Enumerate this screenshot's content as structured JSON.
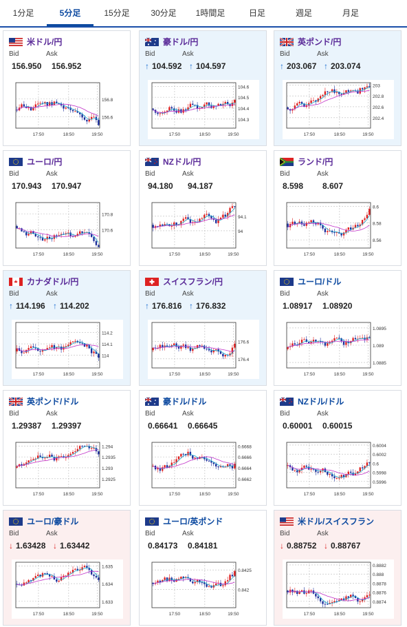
{
  "tabs": [
    {
      "label": "1分足"
    },
    {
      "label": "5分足"
    },
    {
      "label": "15分足"
    },
    {
      "label": "30分足"
    },
    {
      "label": "1時間足"
    },
    {
      "label": "日足"
    },
    {
      "label": "週足"
    },
    {
      "label": "月足"
    }
  ],
  "active_tab": 1,
  "bid_label": "Bid",
  "ask_label": "Ask",
  "x_ticks": [
    "17:50",
    "18:50",
    "19:50"
  ],
  "cards": [
    {
      "name": "米ドル/円",
      "flag": "us",
      "bid": "156.950",
      "ask": "156.952",
      "state": "none",
      "arrow": "",
      "yticks": [
        "156.8",
        "156.6"
      ],
      "ytickpos": [
        0.36,
        0.75
      ]
    },
    {
      "name": "豪ドル/円",
      "flag": "au",
      "bid": "104.592",
      "ask": "104.597",
      "state": "up",
      "arrow": "↑",
      "yticks": [
        "104.6",
        "104.5",
        "104.4",
        "104.3"
      ],
      "ytickpos": [
        0.08,
        0.32,
        0.56,
        0.8
      ]
    },
    {
      "name": "英ポンド/円",
      "flag": "gb",
      "bid": "203.067",
      "ask": "203.074",
      "state": "up",
      "arrow": "↑",
      "yticks": [
        "203",
        "202.8",
        "202.6",
        "202.4"
      ],
      "ytickpos": [
        0.05,
        0.29,
        0.53,
        0.77
      ]
    },
    {
      "name": "ユーロ/円",
      "flag": "eu",
      "bid": "170.943",
      "ask": "170.947",
      "state": "none",
      "arrow": "",
      "yticks": [
        "170.8",
        "170.6"
      ],
      "ytickpos": [
        0.25,
        0.6
      ]
    },
    {
      "name": "NZドル/円",
      "flag": "nz",
      "bid": "94.180",
      "ask": "94.187",
      "state": "none",
      "arrow": "",
      "yticks": [
        "94.1",
        "94"
      ],
      "ytickpos": [
        0.3,
        0.62
      ]
    },
    {
      "name": "ランド/円",
      "flag": "za",
      "bid": "8.598",
      "ask": "8.607",
      "state": "none",
      "arrow": "",
      "yticks": [
        "8.6",
        "8.58",
        "8.56"
      ],
      "ytickpos": [
        0.08,
        0.45,
        0.82
      ]
    },
    {
      "name": "カナダドル/円",
      "flag": "ca",
      "bid": "114.196",
      "ask": "114.202",
      "state": "up",
      "arrow": "↑",
      "yticks": [
        "114.2",
        "114.1",
        "114"
      ],
      "ytickpos": [
        0.22,
        0.47,
        0.72
      ]
    },
    {
      "name": "スイスフラン/円",
      "flag": "ch",
      "bid": "176.816",
      "ask": "176.832",
      "state": "up",
      "arrow": "↑",
      "yticks": [
        "176.6",
        "176.4"
      ],
      "ytickpos": [
        0.42,
        0.8
      ]
    },
    {
      "name": "ユーロ/ドル",
      "flag": "eu",
      "bid": "1.08917",
      "ask": "1.08920",
      "state": "none",
      "arrow": "",
      "yticks": [
        "1.0895",
        "1.089",
        "1.0885"
      ],
      "ytickpos": [
        0.12,
        0.5,
        0.88
      ]
    },
    {
      "name": "英ポンド/ドル",
      "flag": "gb",
      "bid": "1.29387",
      "ask": "1.29397",
      "state": "none",
      "arrow": "",
      "yticks": [
        "1.294",
        "1.2935",
        "1.293",
        "1.2925"
      ],
      "ytickpos": [
        0.08,
        0.32,
        0.56,
        0.8
      ]
    },
    {
      "name": "豪ドル/ドル",
      "flag": "au",
      "bid": "0.66641",
      "ask": "0.66645",
      "state": "none",
      "arrow": "",
      "yticks": [
        "0.6668",
        "0.6666",
        "0.6664",
        "0.6662"
      ],
      "ytickpos": [
        0.08,
        0.32,
        0.56,
        0.8
      ]
    },
    {
      "name": "NZドル/ドル",
      "flag": "nz",
      "bid": "0.60001",
      "ask": "0.60015",
      "state": "none",
      "arrow": "",
      "yticks": [
        "0.6004",
        "0.6002",
        "0.6",
        "0.5998",
        "0.5996"
      ],
      "ytickpos": [
        0.06,
        0.26,
        0.46,
        0.66,
        0.86
      ]
    },
    {
      "name": "ユーロ/豪ドル",
      "flag": "eu",
      "bid": "1.63428",
      "ask": "1.63442",
      "state": "down",
      "arrow": "↓",
      "yticks": [
        "1.635",
        "1.634",
        "1.633"
      ],
      "ytickpos": [
        0.08,
        0.47,
        0.86
      ]
    },
    {
      "name": "ユーロ/英ポンド",
      "flag": "eu",
      "bid": "0.84173",
      "ask": "0.84181",
      "state": "none",
      "arrow": "",
      "yticks": [
        "0.8425",
        "0.842"
      ],
      "ytickpos": [
        0.17,
        0.6
      ]
    },
    {
      "name": "米ドル/スイスフラン",
      "flag": "us",
      "bid": "0.88752",
      "ask": "0.88767",
      "state": "down",
      "arrow": "↓",
      "yticks": [
        "0.8882",
        "0.888",
        "0.8878",
        "0.8876",
        "0.8874"
      ],
      "ytickpos": [
        0.06,
        0.26,
        0.46,
        0.66,
        0.86
      ]
    }
  ]
}
